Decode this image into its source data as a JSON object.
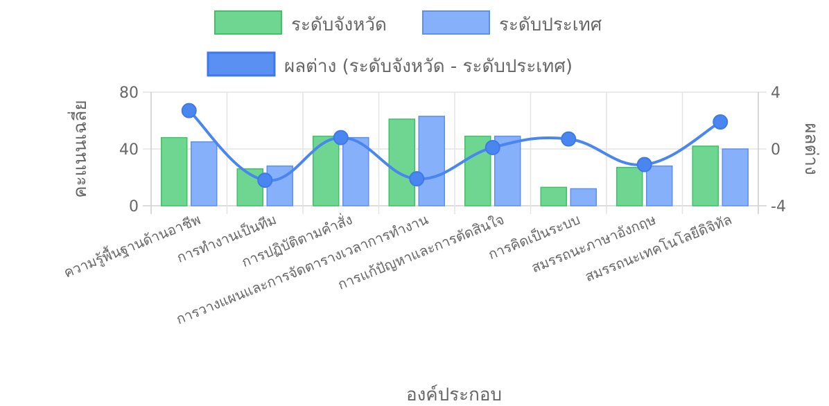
{
  "chart_data": {
    "type": "bar",
    "categories": [
      "ความรู้พื้นฐานด้านอาชีพ",
      "การทำงานเป็นทีม",
      "การปฏิบัติตามคำสั่ง",
      "การวางแผนและการจัดตารางเวลาการทำงาน",
      "การแก้ปัญหาและการตัดสินใจ",
      "การคิดเป็นระบบ",
      "สมรรถนะภาษาอังกฤษ",
      "สมรรถนะเทคโนโลยีดิจิทัล"
    ],
    "series": [
      {
        "name": "ระดับจังหวัด",
        "type": "bar",
        "axis": "left",
        "color": "#6fd691",
        "border": "#3cc364",
        "values": [
          48,
          26,
          49,
          61,
          49,
          13,
          27,
          42
        ]
      },
      {
        "name": "ระดับประเทศ",
        "type": "bar",
        "axis": "left",
        "color": "#86b1fa",
        "border": "#5b8ff6",
        "values": [
          45,
          28,
          48,
          63,
          49,
          12,
          28,
          40
        ]
      },
      {
        "name": "ผลต่าง (ระดับจังหวัด - ระดับประเทศ)",
        "type": "line",
        "axis": "right",
        "color": "#4a86f0",
        "values": [
          2.7,
          -2.2,
          0.8,
          -2.1,
          0.1,
          0.7,
          -1.1,
          1.9
        ]
      }
    ],
    "xlabel": "องค์ประกอบ",
    "ylabel": "คะแนนเฉลี่ย",
    "y2label": "ผลต่าง",
    "ylim": [
      0,
      80
    ],
    "y2lim": [
      -4,
      4
    ],
    "yticks": [
      "0",
      "40",
      "80"
    ],
    "y2ticks": [
      "-4",
      "0",
      "4"
    ],
    "grid": true,
    "legend_position": "top"
  }
}
